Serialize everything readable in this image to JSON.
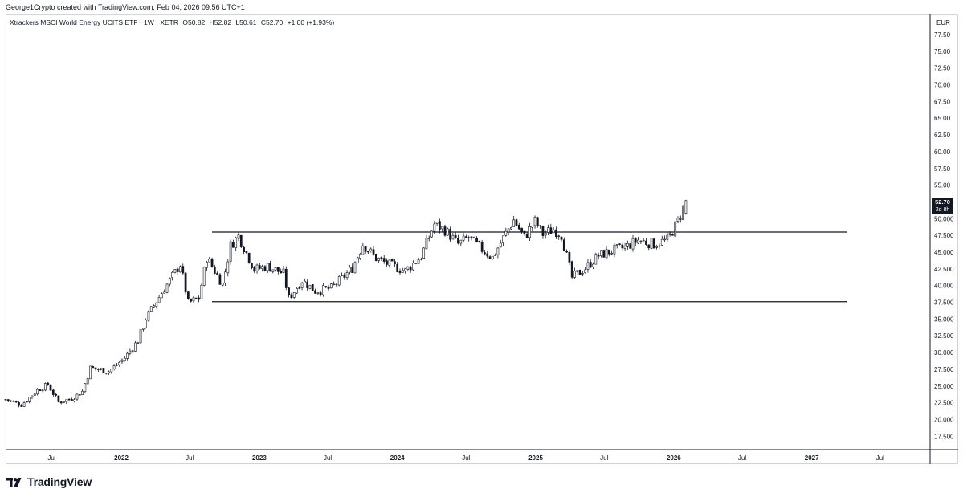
{
  "header": {
    "credit": "George1Crypto created with TradingView.com, Feb 04, 2026 09:56 UTC+1",
    "symbol": "Xtrackers MSCI World Energy UCITS ETF · 1W · XETR",
    "open": "O50.82",
    "high": "H52.82",
    "low": "L50.61",
    "close": "C52.70",
    "change": "+1.00 (+1.93%)"
  },
  "price_axis": {
    "currency": "EUR",
    "current_price": "52.70",
    "countdown": "2d 8h"
  },
  "branding": {
    "logo_text": "TradingView",
    "logo_icon": "tradingview-logo-icon"
  },
  "colors": {
    "candle": "#131722",
    "axis_text": "#131722",
    "border": "#d1d4dc"
  },
  "chart_data": {
    "type": "candlestick",
    "title": "Xtrackers MSCI World Energy UCITS ETF · 1W · XETR",
    "interval": "1W",
    "ylabel": "EUR",
    "ylim": [
      15.5,
      80.5
    ],
    "y_ticks": [
      "17.500",
      "20.000",
      "22.500",
      "25.000",
      "27.500",
      "30.000",
      "32.500",
      "35.000",
      "37.500",
      "40.000",
      "42.500",
      "45.000",
      "47.500",
      "50.000",
      "52.500",
      "55.00",
      "57.50",
      "60.00",
      "62.50",
      "65.00",
      "67.50",
      "70.00",
      "72.50",
      "75.00",
      "77.50"
    ],
    "x_ticks": [
      "Jul",
      "2022",
      "Jul",
      "2023",
      "Jul",
      "2024",
      "Jul",
      "2025",
      "Jul",
      "2026",
      "Jul",
      "2027",
      "Jul"
    ],
    "x_tick_dates": [
      "2021-07-01",
      "2022-01-01",
      "2022-07-01",
      "2023-01-01",
      "2023-07-01",
      "2024-01-01",
      "2024-07-01",
      "2025-01-01",
      "2025-07-01",
      "2026-01-01",
      "2026-07-01",
      "2027-01-01",
      "2027-07-01"
    ],
    "x_range": [
      "2021-03-01",
      "2027-11-10"
    ],
    "grid": false,
    "horizontal_lines": [
      {
        "value": 48.0,
        "start": "2022-08-29",
        "end": "2027-04-05"
      },
      {
        "value": 37.6,
        "start": "2022-08-29",
        "end": "2027-04-05"
      }
    ],
    "series_start": "2021-03-01",
    "series_step_days": 7,
    "series_anchors": [
      [
        "2021-03-01",
        23.0
      ],
      [
        "2021-04-12",
        22.2
      ],
      [
        "2021-05-24",
        24.4
      ],
      [
        "2021-06-21",
        25.2
      ],
      [
        "2021-07-19",
        22.6
      ],
      [
        "2021-08-23",
        23.1
      ],
      [
        "2021-09-20",
        24.2
      ],
      [
        "2021-10-11",
        27.7
      ],
      [
        "2021-11-29",
        27.2
      ],
      [
        "2022-01-10",
        29.2
      ],
      [
        "2022-02-14",
        31.8
      ],
      [
        "2022-03-07",
        35.1
      ],
      [
        "2022-04-11",
        38.3
      ],
      [
        "2022-05-16",
        41.4
      ],
      [
        "2022-06-06",
        43.2
      ],
      [
        "2022-06-27",
        37.4
      ],
      [
        "2022-07-25",
        38.1
      ],
      [
        "2022-08-15",
        44.2
      ],
      [
        "2022-09-26",
        40.2
      ],
      [
        "2022-10-17",
        46.0
      ],
      [
        "2022-11-07",
        47.4
      ],
      [
        "2022-12-19",
        42.4
      ],
      [
        "2023-01-23",
        42.9
      ],
      [
        "2023-03-06",
        41.8
      ],
      [
        "2023-03-20",
        38.1
      ],
      [
        "2023-04-24",
        40.8
      ],
      [
        "2023-05-29",
        39.2
      ],
      [
        "2023-07-10",
        39.6
      ],
      [
        "2023-09-04",
        42.6
      ],
      [
        "2023-10-02",
        46.2
      ],
      [
        "2023-11-06",
        44.1
      ],
      [
        "2023-12-11",
        43.1
      ],
      [
        "2024-01-22",
        42.2
      ],
      [
        "2024-03-04",
        44.4
      ],
      [
        "2024-04-08",
        49.2
      ],
      [
        "2024-05-06",
        48.3
      ],
      [
        "2024-06-10",
        46.2
      ],
      [
        "2024-07-08",
        47.2
      ],
      [
        "2024-08-12",
        45.4
      ],
      [
        "2024-09-09",
        44.2
      ],
      [
        "2024-10-14",
        47.8
      ],
      [
        "2024-11-04",
        49.8
      ],
      [
        "2024-12-02",
        47.2
      ],
      [
        "2024-12-30",
        49.6
      ],
      [
        "2025-01-20",
        47.7
      ],
      [
        "2025-02-17",
        48.4
      ],
      [
        "2025-03-10",
        47.6
      ],
      [
        "2025-04-07",
        41.2
      ],
      [
        "2025-05-12",
        42.6
      ],
      [
        "2025-06-16",
        44.5
      ],
      [
        "2025-07-21",
        45.2
      ],
      [
        "2025-08-25",
        45.7
      ],
      [
        "2025-09-29",
        46.8
      ],
      [
        "2025-11-10",
        46.2
      ],
      [
        "2025-12-15",
        46.8
      ],
      [
        "2026-01-12",
        49.6
      ],
      [
        "2026-02-02",
        52.7
      ]
    ],
    "last_candle": {
      "open": 50.82,
      "high": 52.82,
      "low": 50.61,
      "close": 52.7,
      "change": 1.0,
      "change_pct": 1.93
    }
  }
}
